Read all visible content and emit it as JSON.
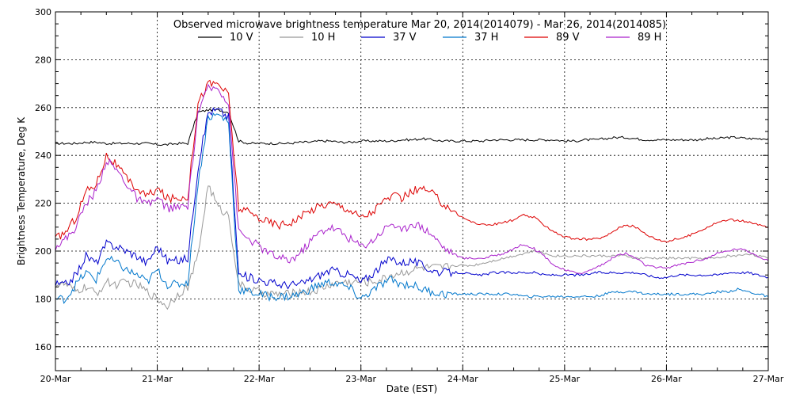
{
  "chart_data": {
    "type": "line",
    "title": "Observed microwave brightness temperature Mar 20, 2014(2014079) - Mar 26, 2014(2014085)",
    "xlabel": "Date (EST)",
    "ylabel": "Brightness Temperature, Deg K",
    "xlim": [
      0,
      7
    ],
    "ylim": [
      150,
      300
    ],
    "x_ticks": [
      0,
      1,
      2,
      3,
      4,
      5,
      6,
      7
    ],
    "x_tick_labels": [
      "20-Mar",
      "21-Mar",
      "22-Mar",
      "23-Mar",
      "24-Mar",
      "25-Mar",
      "26-Mar",
      "27-Mar"
    ],
    "y_ticks": [
      160,
      180,
      200,
      220,
      240,
      260,
      280,
      300
    ],
    "y_tick_labels": [
      "160",
      "180",
      "200",
      "220",
      "240",
      "260",
      "280",
      "300"
    ],
    "grid": true,
    "legend_position": "top",
    "x": [
      0,
      0.1,
      0.2,
      0.3,
      0.4,
      0.5,
      0.6,
      0.7,
      0.8,
      0.9,
      1.0,
      1.1,
      1.2,
      1.3,
      1.4,
      1.5,
      1.6,
      1.7,
      1.8,
      1.9,
      2.0,
      2.1,
      2.2,
      2.3,
      2.4,
      2.5,
      2.6,
      2.7,
      2.8,
      2.9,
      3.0,
      3.1,
      3.2,
      3.3,
      3.4,
      3.5,
      3.6,
      3.7,
      3.8,
      3.9,
      4.0,
      4.1,
      4.2,
      4.3,
      4.4,
      4.5,
      4.6,
      4.7,
      4.8,
      4.9,
      5.0,
      5.1,
      5.2,
      5.3,
      5.4,
      5.5,
      5.6,
      5.7,
      5.8,
      5.9,
      6.0,
      6.1,
      6.2,
      6.3,
      6.4,
      6.5,
      6.6,
      6.7,
      6.8,
      6.9,
      7.0
    ],
    "series": [
      {
        "name": "10 V",
        "color": "#000000",
        "values": [
          245,
          245,
          245,
          245.5,
          245.5,
          245,
          245,
          245,
          245,
          245,
          244.5,
          244.5,
          245,
          245,
          258,
          259,
          259,
          258,
          246,
          245,
          245,
          245,
          245,
          245,
          245.5,
          245.5,
          246,
          246,
          245.5,
          245.5,
          246,
          246,
          246,
          246,
          246.5,
          246.5,
          247,
          246.5,
          246,
          246,
          246,
          246,
          246,
          246.5,
          246.5,
          246.5,
          246.5,
          246.5,
          246.5,
          246.5,
          246,
          246,
          246.5,
          246.5,
          247,
          247.5,
          247.5,
          247,
          246.5,
          246.5,
          246.5,
          246.5,
          246.5,
          246.5,
          247,
          247,
          247.5,
          247.5,
          247,
          247,
          247
        ]
      },
      {
        "name": "10 H",
        "color": "#999999",
        "values": [
          186,
          186,
          183,
          185,
          182,
          187,
          186,
          187,
          186,
          183,
          180,
          177,
          182,
          185,
          198,
          228,
          218,
          215,
          186,
          184,
          183,
          182,
          182,
          182,
          183,
          183,
          184,
          186,
          187,
          187,
          187,
          187,
          188,
          190,
          191,
          192,
          193,
          193,
          193,
          194,
          194,
          194,
          195,
          196,
          197,
          198,
          199,
          200,
          199,
          198,
          198,
          198,
          198,
          198,
          198,
          198,
          198,
          197,
          197,
          197,
          197,
          197,
          197,
          197,
          197,
          197,
          198,
          198,
          199,
          198,
          197
        ]
      },
      {
        "name": "37 V",
        "color": "#0000cc",
        "values": [
          186,
          186,
          190,
          198,
          195,
          203,
          202,
          200,
          198,
          195,
          202,
          196,
          196,
          197,
          235,
          258,
          259,
          256,
          190,
          189,
          188,
          187,
          186,
          186,
          186,
          188,
          190,
          192,
          191,
          190,
          187,
          190,
          194,
          197,
          195,
          196,
          194,
          192,
          191,
          191,
          191,
          190,
          190,
          191,
          191,
          191,
          191,
          191,
          190,
          190,
          190,
          190,
          190,
          191,
          191,
          191,
          191,
          191,
          190,
          189,
          189,
          190,
          190,
          190,
          190,
          190,
          191,
          191,
          191,
          190,
          189
        ]
      },
      {
        "name": "37 H",
        "color": "#0077cc",
        "values": [
          180,
          180,
          186,
          191,
          188,
          197,
          195,
          192,
          190,
          187,
          192,
          186,
          186,
          187,
          228,
          256,
          257,
          254,
          184,
          183,
          182,
          181,
          181,
          181,
          182,
          184,
          186,
          187,
          186,
          184,
          180,
          183,
          186,
          188,
          186,
          186,
          184,
          183,
          182,
          182,
          182,
          182,
          182,
          182,
          182,
          182,
          181,
          181,
          181,
          181,
          181,
          181,
          181,
          181,
          182,
          183,
          183,
          183,
          182,
          182,
          182,
          182,
          182,
          182,
          182,
          183,
          183,
          184,
          183,
          182,
          181
        ]
      },
      {
        "name": "89 V",
        "color": "#dd0000",
        "values": [
          205,
          208,
          214,
          225,
          228,
          240,
          236,
          230,
          226,
          223,
          226,
          222,
          222,
          223,
          262,
          270,
          270,
          265,
          218,
          216,
          214,
          212,
          211,
          212,
          214,
          217,
          219,
          220,
          219,
          217,
          214,
          216,
          220,
          223,
          222,
          225,
          226,
          224,
          220,
          217,
          214,
          212,
          211,
          211,
          212,
          213,
          215,
          214,
          211,
          208,
          206,
          205,
          205,
          205,
          206,
          209,
          211,
          210,
          207,
          205,
          204,
          205,
          206,
          208,
          210,
          212,
          213,
          213,
          212,
          211,
          210
        ]
      },
      {
        "name": "89 H",
        "color": "#aa22cc",
        "values": [
          202,
          205,
          210,
          220,
          225,
          238,
          234,
          228,
          222,
          219,
          222,
          218,
          218,
          219,
          258,
          268,
          268,
          262,
          208,
          205,
          202,
          199,
          197,
          196,
          199,
          204,
          208,
          210,
          208,
          205,
          202,
          204,
          208,
          212,
          208,
          212,
          210,
          207,
          202,
          199,
          197,
          197,
          197,
          198,
          199,
          201,
          203,
          201,
          198,
          194,
          192,
          191,
          191,
          193,
          195,
          198,
          199,
          197,
          194,
          193,
          193,
          194,
          195,
          196,
          197,
          199,
          200,
          201,
          200,
          198,
          196
        ]
      }
    ]
  }
}
